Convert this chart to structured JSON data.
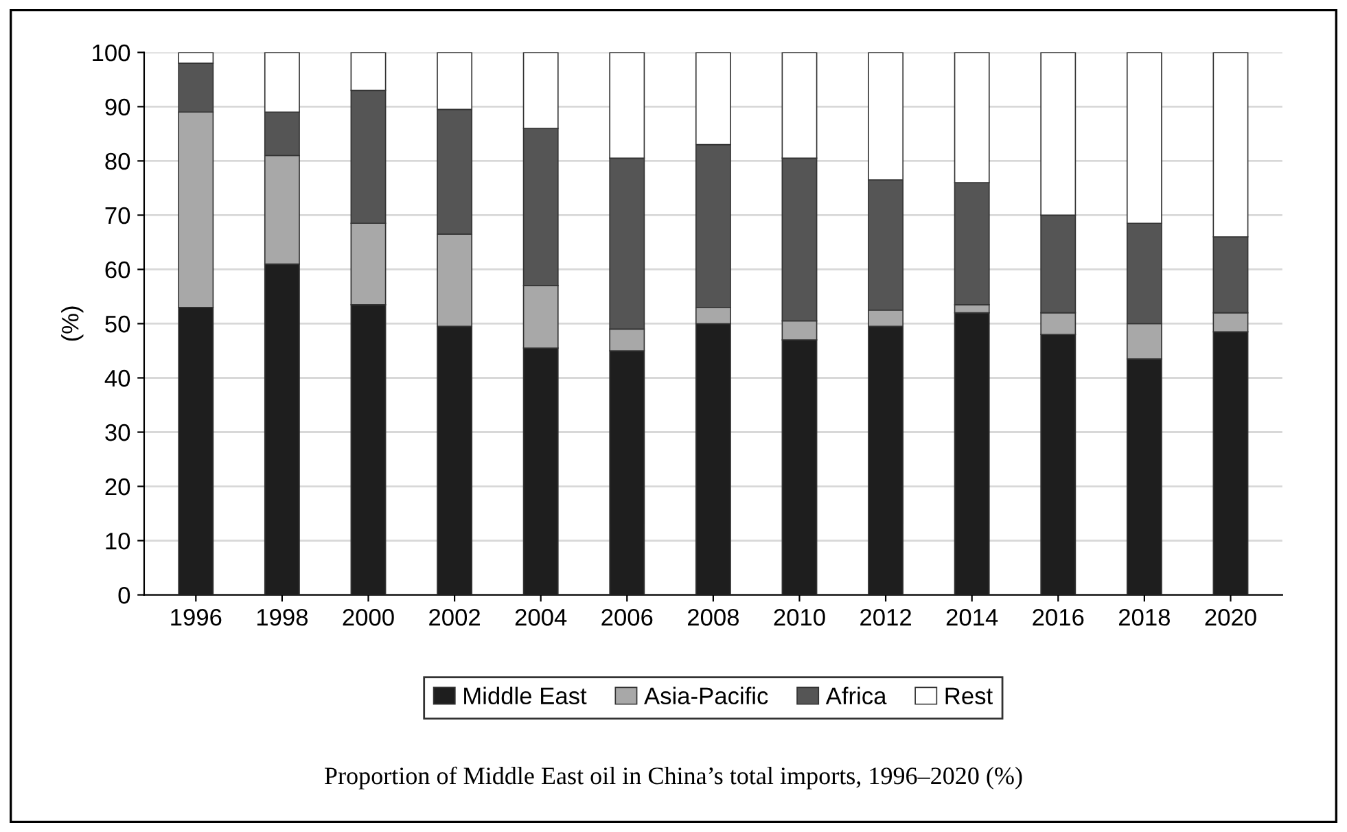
{
  "chart_data": {
    "type": "bar",
    "stacked": true,
    "ylabel": "(%)",
    "categories": [
      "1996",
      "1998",
      "2000",
      "2002",
      "2004",
      "2006",
      "2008",
      "2010",
      "2012",
      "2014",
      "2016",
      "2018",
      "2020"
    ],
    "series": [
      {
        "name": "Middle East",
        "color": "#1e1e1e",
        "values": [
          53,
          61,
          53.5,
          49.5,
          45.5,
          45,
          50,
          47,
          49.5,
          52,
          48,
          43.5,
          48.5
        ]
      },
      {
        "name": "Asia-Pacific",
        "color": "#a8a8a8",
        "values": [
          36,
          20,
          15,
          17,
          11.5,
          4,
          3,
          3.5,
          3,
          1.5,
          4,
          6.5,
          3.5
        ]
      },
      {
        "name": "Africa",
        "color": "#555555",
        "values": [
          9,
          8,
          24.5,
          23,
          29,
          31.5,
          30,
          30,
          24,
          22.5,
          18,
          18.5,
          14
        ]
      },
      {
        "name": "Rest",
        "color": "#ffffff",
        "values": [
          2,
          11,
          7,
          10.5,
          14,
          19.5,
          17,
          19.5,
          23.5,
          24,
          30,
          31.5,
          34
        ]
      }
    ],
    "ylim": [
      0,
      100
    ],
    "yticks": [
      0,
      10,
      20,
      30,
      40,
      50,
      60,
      70,
      80,
      90,
      100
    ],
    "grid": "y",
    "legend": "bottom",
    "annotations": [
      "Proportion of Middle East oil in China’s total imports, 1996–2020 (%)"
    ]
  }
}
